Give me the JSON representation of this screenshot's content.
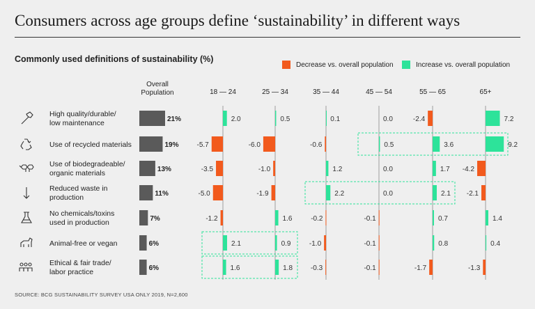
{
  "title": "Consumers across age groups define ‘sustainability’ in different ways",
  "subtitle": "Commonly used definitions of sustainability (%)",
  "legend": {
    "decrease": "Decrease vs. overall population",
    "increase": "Increase vs. overall population"
  },
  "source": "SOURCE: BCG SUSTAINABILITY SURVEY USA ONLY 2019, N=2,600",
  "colors": {
    "decrease": "#f25a1d",
    "increase": "#2de39a",
    "overall": "#5a5a5a",
    "highlight_box": "#2de39a"
  },
  "chart_data": {
    "type": "bar",
    "overall_header_line1": "Overall",
    "overall_header_line2": "Population",
    "categories": [
      {
        "line1": "High quality/durable/",
        "line2": "low maintenance",
        "icon": "hammer-icon"
      },
      {
        "line1": "Use of recycled materials",
        "line2": "",
        "icon": "recycle-icon"
      },
      {
        "line1": "Use of biodegradeable/",
        "line2": "organic materials",
        "icon": "molecule-icon"
      },
      {
        "line1": "Reduced waste in",
        "line2": "production",
        "icon": "arrow-down-icon"
      },
      {
        "line1": "No chemicals/toxins",
        "line2": "used in production",
        "icon": "flask-icon"
      },
      {
        "line1": "Animal-free or vegan",
        "line2": "",
        "icon": "animal-icon"
      },
      {
        "line1": "Ethical & fair trade/",
        "line2": "labor practice",
        "icon": "people-icon"
      }
    ],
    "overall": {
      "values": [
        21,
        19,
        13,
        11,
        7,
        6,
        6
      ],
      "labels": [
        "21%",
        "19%",
        "13%",
        "11%",
        "7%",
        "6%",
        "6%"
      ]
    },
    "series": [
      {
        "name": "18 — 24",
        "values": [
          2.0,
          -5.7,
          -3.5,
          -5.0,
          -1.2,
          2.1,
          1.6
        ],
        "labels": [
          "2.0",
          "-5.7",
          "-3.5",
          "-5.0",
          "-1.2",
          "2.1",
          "1.6"
        ]
      },
      {
        "name": "25 — 34",
        "values": [
          0.5,
          -6.0,
          -1.0,
          -1.9,
          1.6,
          0.9,
          1.8
        ],
        "labels": [
          "0.5",
          "-6.0",
          "-1.0",
          "-1.9",
          "1.6",
          "0.9",
          "1.8"
        ]
      },
      {
        "name": "35 — 44",
        "values": [
          0.1,
          -0.6,
          1.2,
          2.2,
          -0.2,
          -1.0,
          -0.3
        ],
        "labels": [
          "0.1",
          "-0.6",
          "1.2",
          "2.2",
          "-0.2",
          "-1.0",
          "-0.3"
        ]
      },
      {
        "name": "45 — 54",
        "values": [
          0.0,
          0.5,
          0.0,
          0.0,
          -0.1,
          -0.1,
          -0.1
        ],
        "labels": [
          "0.0",
          "0.5",
          "0.0",
          "0.0",
          "-0.1",
          "-0.1",
          "-0.1"
        ]
      },
      {
        "name": "55 — 65",
        "values": [
          -2.4,
          3.6,
          1.7,
          2.1,
          0.7,
          0.8,
          -1.7
        ],
        "labels": [
          "-2.4",
          "3.6",
          "1.7",
          "2.1",
          "0.7",
          "0.8",
          "-1.7"
        ]
      },
      {
        "name": "65+",
        "values": [
          7.2,
          9.2,
          -4.2,
          -2.1,
          1.4,
          0.4,
          -1.3
        ],
        "labels": [
          "7.2",
          "9.2",
          "-4.2",
          "-2.1",
          "1.4",
          "0.4",
          "-1.3"
        ]
      }
    ],
    "highlights": [
      {
        "row": 1,
        "series_from": 3,
        "series_to": 5
      },
      {
        "row": 3,
        "series_from": 2,
        "series_to": 4
      },
      {
        "row": 5,
        "series_from": 0,
        "series_to": 1
      },
      {
        "row": 6,
        "series_from": 0,
        "series_to": 1
      }
    ]
  }
}
